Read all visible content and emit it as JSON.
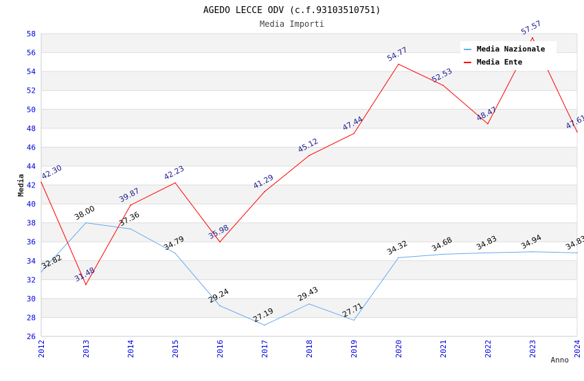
{
  "chart_data": {
    "type": "line",
    "title": "AGEDO LECCE ODV (c.f.93103510751)",
    "subtitle": "Media Importi",
    "xlabel": "Anno",
    "ylabel": "Media",
    "ylim": [
      26,
      58
    ],
    "yticks": [
      "26",
      "28",
      "30",
      "32",
      "34",
      "36",
      "38",
      "40",
      "42",
      "44",
      "46",
      "48",
      "50",
      "52",
      "54",
      "56",
      "58"
    ],
    "categories": [
      "2012",
      "2013",
      "2014",
      "2015",
      "2016",
      "2017",
      "2018",
      "2019",
      "2020",
      "2021",
      "2022",
      "2023",
      "2024"
    ],
    "legend_position": "top-right",
    "grid": true,
    "series": [
      {
        "name": "Media Nazionale",
        "color": "#66aaee",
        "label_color": "#000000",
        "values": [
          32.82,
          38.0,
          37.36,
          34.79,
          29.24,
          27.19,
          29.43,
          27.71,
          34.32,
          34.68,
          34.83,
          34.94,
          34.83
        ],
        "labels": [
          "32.82",
          "38.00",
          "37.36",
          "34.79",
          "29.24",
          "27.19",
          "29.43",
          "27.71",
          "34.32",
          "34.68",
          "34.83",
          "34.94",
          "34.83"
        ]
      },
      {
        "name": "Media Ente",
        "color": "#ff0000",
        "label_color": "#1a1a8c",
        "values": [
          42.3,
          31.48,
          39.87,
          42.23,
          35.98,
          41.29,
          45.12,
          47.44,
          54.77,
          52.53,
          48.47,
          57.57,
          47.61
        ],
        "labels": [
          "42.30",
          "31.48",
          "39.87",
          "42.23",
          "35.98",
          "41.29",
          "45.12",
          "47.44",
          "54.77",
          "52.53",
          "48.47",
          "57.57",
          "47.61"
        ]
      }
    ]
  }
}
